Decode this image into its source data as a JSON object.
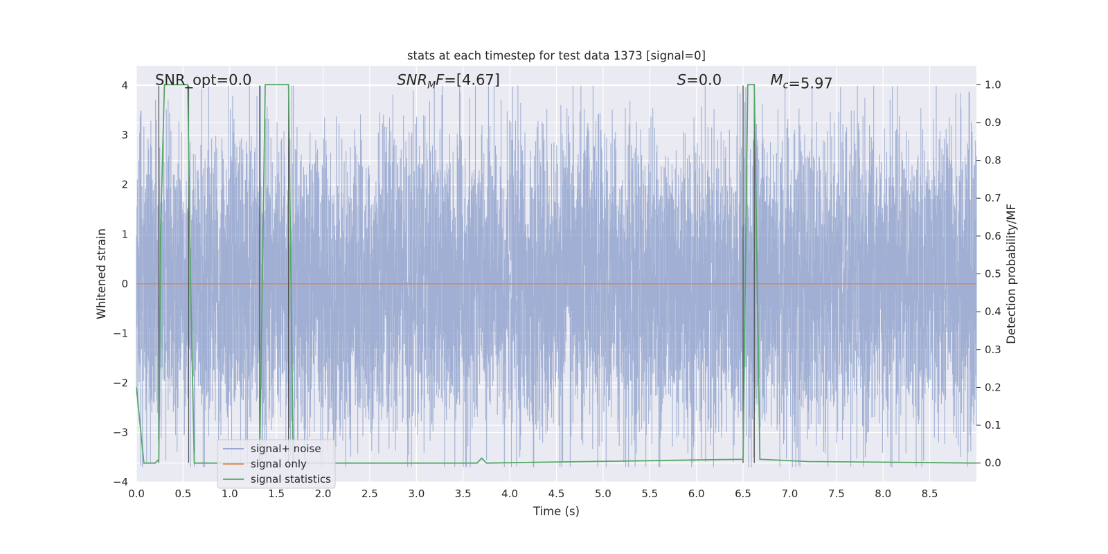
{
  "chart_data": {
    "type": "line",
    "title": "stats at each timestep for test data 1373 [signal=0]",
    "xlabel": "Time (s)",
    "ylabel_left": "Whitened strain",
    "ylabel_right": "Detection probability/MF",
    "xlim": [
      0.0,
      9.0
    ],
    "ylim_left": [
      -4.0,
      4.4
    ],
    "ylim_right": [
      -0.05,
      1.05
    ],
    "x_ticks": [
      "0.0",
      "0.5",
      "1.0",
      "1.5",
      "2.0",
      "2.5",
      "3.0",
      "3.5",
      "4.0",
      "4.5",
      "5.0",
      "5.5",
      "6.0",
      "6.5",
      "7.0",
      "7.5",
      "8.0",
      "8.5"
    ],
    "y_ticks_left": [
      "−4",
      "−3",
      "−2",
      "−1",
      "0",
      "1",
      "2",
      "3",
      "4"
    ],
    "y_ticks_right": [
      "0.0",
      "0.1",
      "0.2",
      "0.3",
      "0.4",
      "0.5",
      "0.6",
      "0.7",
      "0.8",
      "0.9",
      "1.0"
    ],
    "grid": true,
    "legend_position": "lower-left",
    "annotations": [
      {
        "id": "snr_opt",
        "text": "SNR_opt=0.0",
        "x": 0.2,
        "y": 4.0
      },
      {
        "id": "snr_mf",
        "text": "=[4.67]",
        "math": "SNR",
        "math_sub": "M",
        "math_suffix": "F",
        "x": 2.6,
        "y": 4.0
      },
      {
        "id": "s_stat",
        "text": "=0.0",
        "math": "S",
        "x": 5.6,
        "y": 4.0
      },
      {
        "id": "mc",
        "text": "=5.97",
        "math": "M",
        "math_sub": "c",
        "x": 6.6,
        "y": 4.0
      }
    ],
    "vertical_lines": [
      0.24,
      0.56,
      1.32,
      1.63,
      6.5,
      6.62
    ],
    "series": [
      {
        "name": "signal+ noise",
        "axis": "left",
        "color": "#8da0cb",
        "kind": "noise",
        "approx_std": 1.05,
        "approx_range": [
          -3.7,
          4.0
        ],
        "x_range": [
          0.0,
          9.0
        ]
      },
      {
        "name": "signal only",
        "axis": "left",
        "color": "#dd8452",
        "x": [
          0.0,
          9.0
        ],
        "values": [
          0.0,
          0.0
        ]
      },
      {
        "name": "signal statistics",
        "axis": "right",
        "color": "#55a868",
        "x": [
          0.0,
          0.08,
          0.2,
          0.24,
          0.26,
          0.3,
          0.55,
          0.58,
          0.62,
          1.32,
          1.38,
          1.63,
          1.68,
          3.65,
          3.7,
          3.75,
          6.5,
          6.55,
          6.62,
          6.68,
          7.2,
          9.0
        ],
        "values": [
          0.2,
          0.0,
          0.0,
          0.01,
          0.62,
          1.0,
          1.0,
          0.48,
          0.0,
          0.0,
          1.0,
          1.0,
          0.0,
          0.0,
          0.013,
          0.0,
          0.01,
          1.0,
          1.0,
          0.01,
          0.004,
          0.0
        ]
      }
    ]
  },
  "legend": {
    "items": [
      {
        "label": "signal+ noise",
        "color": "#8da0cb"
      },
      {
        "label": "signal only",
        "color": "#dd8452"
      },
      {
        "label": "signal statistics",
        "color": "#55a868"
      }
    ]
  }
}
